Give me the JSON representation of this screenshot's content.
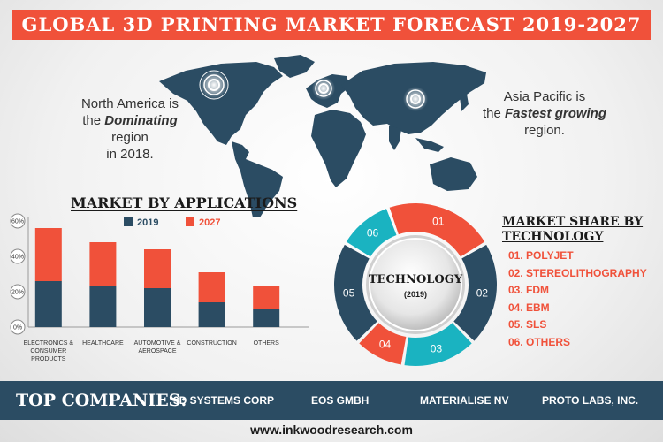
{
  "header": {
    "title": "GLOBAL 3D PRINTING MARKET FORECAST 2019-2027"
  },
  "notes": {
    "north_america": {
      "line1": "North America is",
      "line2_pre": "the ",
      "line2_em": "Dominating",
      "line2_post": " region",
      "line3": "in 2018."
    },
    "asia_pacific": {
      "line1": "Asia Pacific is",
      "line2_pre": "the ",
      "line2_em": "Fastest growing",
      "line3": "region."
    }
  },
  "colors": {
    "accent": "#f0513a",
    "navy": "#2b4c63",
    "teal": "#1ab3c1"
  },
  "chart_data": [
    {
      "type": "bar",
      "title": "MARKET BY APPLICATIONS",
      "categories": [
        "ELECTRONICS & CONSUMER PRODUCTS",
        "HEALTHCARE",
        "AUTOMOTIVE & AEROSPACE",
        "CONSTRUCTION",
        "OTHERS"
      ],
      "category_lines": [
        [
          "ELECTRONICS &",
          "CONSUMER",
          "PRODUCTS"
        ],
        [
          "HEALTHCARE"
        ],
        [
          "AUTOMOTIVE &",
          "AEROSPACE"
        ],
        [
          "CONSTRUCTION"
        ],
        [
          "OTHERS"
        ]
      ],
      "series": [
        {
          "name": "2019",
          "values": [
            26,
            23,
            22,
            14,
            10
          ],
          "color": "#2b4c63"
        },
        {
          "name": "2027",
          "values": [
            30,
            25,
            22,
            17,
            13
          ],
          "color": "#f0513a"
        }
      ],
      "stacked": true,
      "yticks": [
        "0%",
        "20%",
        "40%",
        "60%"
      ],
      "ylim": [
        0,
        60
      ]
    },
    {
      "type": "pie",
      "title": "MARKET SHARE BY TECHNOLOGY",
      "center_title": "TECHNOLOGY",
      "center_sub": "(2019)",
      "labels": [
        "01",
        "02",
        "03",
        "04",
        "05",
        "06"
      ],
      "values": [
        22,
        21,
        15,
        10,
        21,
        11
      ],
      "colors": [
        "#f0513a",
        "#2b4c63",
        "#1ab3c1",
        "#f0513a",
        "#2b4c63",
        "#1ab3c1"
      ],
      "legend": [
        "01. POLYJET",
        "02. STEREOLITHOGRAPHY",
        "03. FDM",
        "04. EBM",
        "05. SLS",
        "06. OTHERS"
      ]
    }
  ],
  "footer": {
    "label": "TOP COMPANIES:",
    "companies": [
      "3D SYSTEMS CORP",
      "EOS GMBH",
      "MATERIALISE NV",
      "PROTO LABS, INC."
    ],
    "url": "www.inkwoodresearch.com"
  }
}
